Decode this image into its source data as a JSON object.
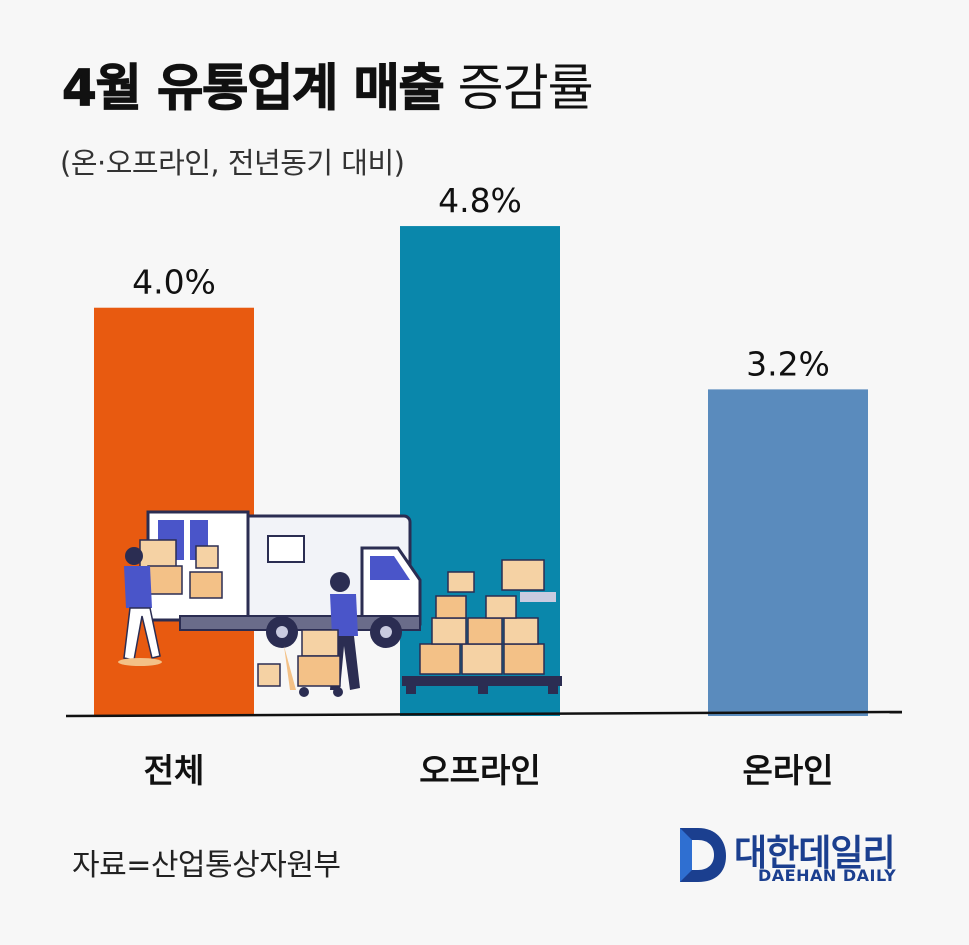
{
  "title": {
    "bold": "4월 유통업계 매출",
    "light": "증감률"
  },
  "subtitle": "(온·오프라인, 전년동기 대비)",
  "chart_data": {
    "type": "bar",
    "categories": [
      "전체",
      "오프라인",
      "온라인"
    ],
    "values": [
      4.0,
      4.8,
      3.2
    ],
    "value_labels": [
      "4.0%",
      "4.8%",
      "3.2%"
    ],
    "unit": "%",
    "ylim": [
      0,
      5.8
    ],
    "colors": [
      "#e85a10",
      "#0a87ab",
      "#5a8bbd"
    ],
    "grid": false,
    "legend": "none"
  },
  "source": "자료=산업통상자원부",
  "brand": {
    "name_ko": "대한데일리",
    "name_en": "DAEHAN DAILY",
    "color": "#1b3f8f"
  }
}
